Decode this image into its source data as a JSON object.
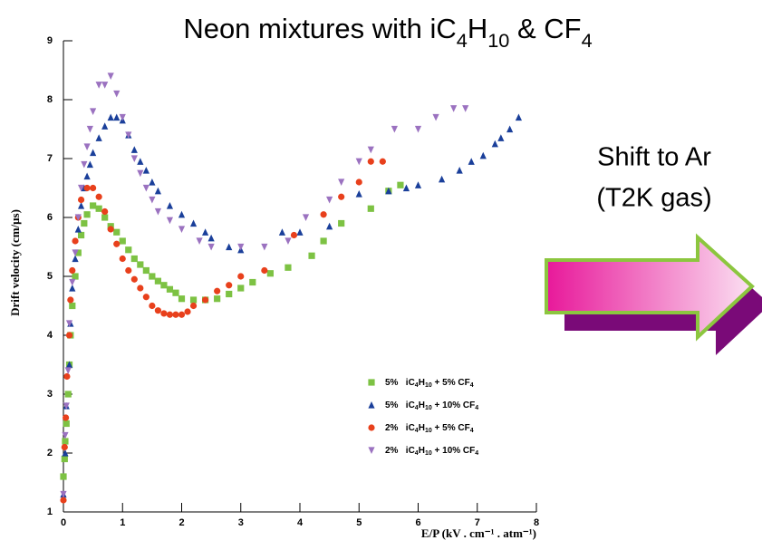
{
  "chart_data": {
    "type": "scatter",
    "title": "Neon mixtures with iC4H10 & CF4",
    "x_label": "E/P (kV . cm⁻¹ . atm⁻¹)",
    "y_label": "Drift velocity (cm/μs)",
    "xlim": [
      0,
      8
    ],
    "ylim": [
      1,
      9
    ],
    "xticks": [
      0,
      1,
      2,
      3,
      4,
      5,
      6,
      7,
      8
    ],
    "yticks": [
      1,
      2,
      3,
      4,
      5,
      6,
      7,
      8,
      9
    ],
    "grid": false,
    "series": [
      {
        "name": "5%   iC4H10 + 5% CF4",
        "color": "#7dc243",
        "marker": "square",
        "x": [
          0,
          0.02,
          0.03,
          0.05,
          0.08,
          0.1,
          0.12,
          0.15,
          0.2,
          0.25,
          0.3,
          0.35,
          0.4,
          0.5,
          0.6,
          0.7,
          0.8,
          0.9,
          1.0,
          1.1,
          1.2,
          1.3,
          1.4,
          1.5,
          1.6,
          1.7,
          1.8,
          1.9,
          2.0,
          2.2,
          2.4,
          2.6,
          2.8,
          3.0,
          3.2,
          3.5,
          3.8,
          4.2,
          4.4,
          4.7,
          5.2,
          5.5,
          5.7
        ],
        "values": [
          1.6,
          1.9,
          2.2,
          2.5,
          3.0,
          3.5,
          4.0,
          4.5,
          5.0,
          5.4,
          5.7,
          5.9,
          6.05,
          6.2,
          6.15,
          6.0,
          5.85,
          5.75,
          5.6,
          5.45,
          5.3,
          5.2,
          5.1,
          5.0,
          4.92,
          4.85,
          4.78,
          4.72,
          4.62,
          4.6,
          4.6,
          4.62,
          4.7,
          4.8,
          4.9,
          5.05,
          5.15,
          5.35,
          5.6,
          5.9,
          6.15,
          6.45,
          6.55
        ]
      },
      {
        "name": "5%   iC4H10 + 10% CF4",
        "color": "#1a3f9a",
        "marker": "triangle-up",
        "x": [
          0,
          0.03,
          0.05,
          0.1,
          0.12,
          0.15,
          0.2,
          0.25,
          0.3,
          0.35,
          0.4,
          0.45,
          0.5,
          0.6,
          0.7,
          0.8,
          0.9,
          1.0,
          1.1,
          1.2,
          1.3,
          1.4,
          1.5,
          1.6,
          1.8,
          2.0,
          2.2,
          2.4,
          2.5,
          2.8,
          3.0,
          3.7,
          4.0,
          4.5,
          5.0,
          5.5,
          5.8,
          6.0,
          6.4,
          6.7,
          6.9,
          7.1,
          7.3,
          7.4,
          7.55,
          7.7
        ],
        "values": [
          1.3,
          2.0,
          2.8,
          3.5,
          4.2,
          4.8,
          5.3,
          5.8,
          6.2,
          6.5,
          6.7,
          6.9,
          7.1,
          7.35,
          7.55,
          7.7,
          7.7,
          7.65,
          7.4,
          7.15,
          6.95,
          6.8,
          6.6,
          6.45,
          6.2,
          6.05,
          5.9,
          5.75,
          5.65,
          5.5,
          5.45,
          5.75,
          5.75,
          5.85,
          6.4,
          6.45,
          6.5,
          6.55,
          6.65,
          6.8,
          6.95,
          7.05,
          7.25,
          7.35,
          7.5,
          7.7
        ]
      },
      {
        "name": "2%   iC4H10 + 5% CF4",
        "color": "#e8401c",
        "marker": "circle",
        "x": [
          0,
          0.02,
          0.04,
          0.06,
          0.1,
          0.12,
          0.15,
          0.2,
          0.25,
          0.3,
          0.4,
          0.5,
          0.6,
          0.7,
          0.8,
          0.9,
          1.0,
          1.1,
          1.2,
          1.3,
          1.4,
          1.5,
          1.6,
          1.7,
          1.8,
          1.9,
          2.0,
          2.1,
          2.2,
          2.4,
          2.6,
          2.8,
          3.0,
          3.4,
          3.9,
          4.4,
          4.7,
          5.0,
          5.2,
          5.4
        ],
        "values": [
          1.2,
          2.1,
          2.6,
          3.3,
          4.0,
          4.6,
          5.1,
          5.6,
          6.0,
          6.3,
          6.5,
          6.5,
          6.35,
          6.1,
          5.8,
          5.55,
          5.3,
          5.1,
          4.95,
          4.8,
          4.65,
          4.5,
          4.42,
          4.37,
          4.35,
          4.35,
          4.35,
          4.4,
          4.5,
          4.6,
          4.75,
          4.85,
          5.0,
          5.1,
          5.7,
          6.05,
          6.35,
          6.6,
          6.95,
          6.95
        ]
      },
      {
        "name": "2%   iC4H10 + 10% CF4",
        "color": "#9b72c0",
        "marker": "triangle-down",
        "x": [
          0,
          0.03,
          0.05,
          0.08,
          0.1,
          0.15,
          0.2,
          0.25,
          0.3,
          0.35,
          0.4,
          0.45,
          0.5,
          0.6,
          0.7,
          0.8,
          0.9,
          1.0,
          1.1,
          1.2,
          1.3,
          1.4,
          1.5,
          1.6,
          1.8,
          2.0,
          2.3,
          2.5,
          3.0,
          3.4,
          3.8,
          4.1,
          4.5,
          4.7,
          5.0,
          5.2,
          5.6,
          6.0,
          6.3,
          6.6,
          6.8
        ],
        "values": [
          1.3,
          2.3,
          2.8,
          3.4,
          4.2,
          4.9,
          5.4,
          6.0,
          6.5,
          6.9,
          7.2,
          7.5,
          7.8,
          8.25,
          8.25,
          8.4,
          8.1,
          7.7,
          7.4,
          7.0,
          6.75,
          6.5,
          6.3,
          6.1,
          5.95,
          5.8,
          5.6,
          5.5,
          5.5,
          5.5,
          5.6,
          6.0,
          6.3,
          6.6,
          6.95,
          7.15,
          7.5,
          7.5,
          7.7,
          7.85,
          7.85
        ]
      }
    ]
  },
  "side_text": {
    "line1": "Shift to Ar",
    "line2": "(T2K gas)"
  }
}
